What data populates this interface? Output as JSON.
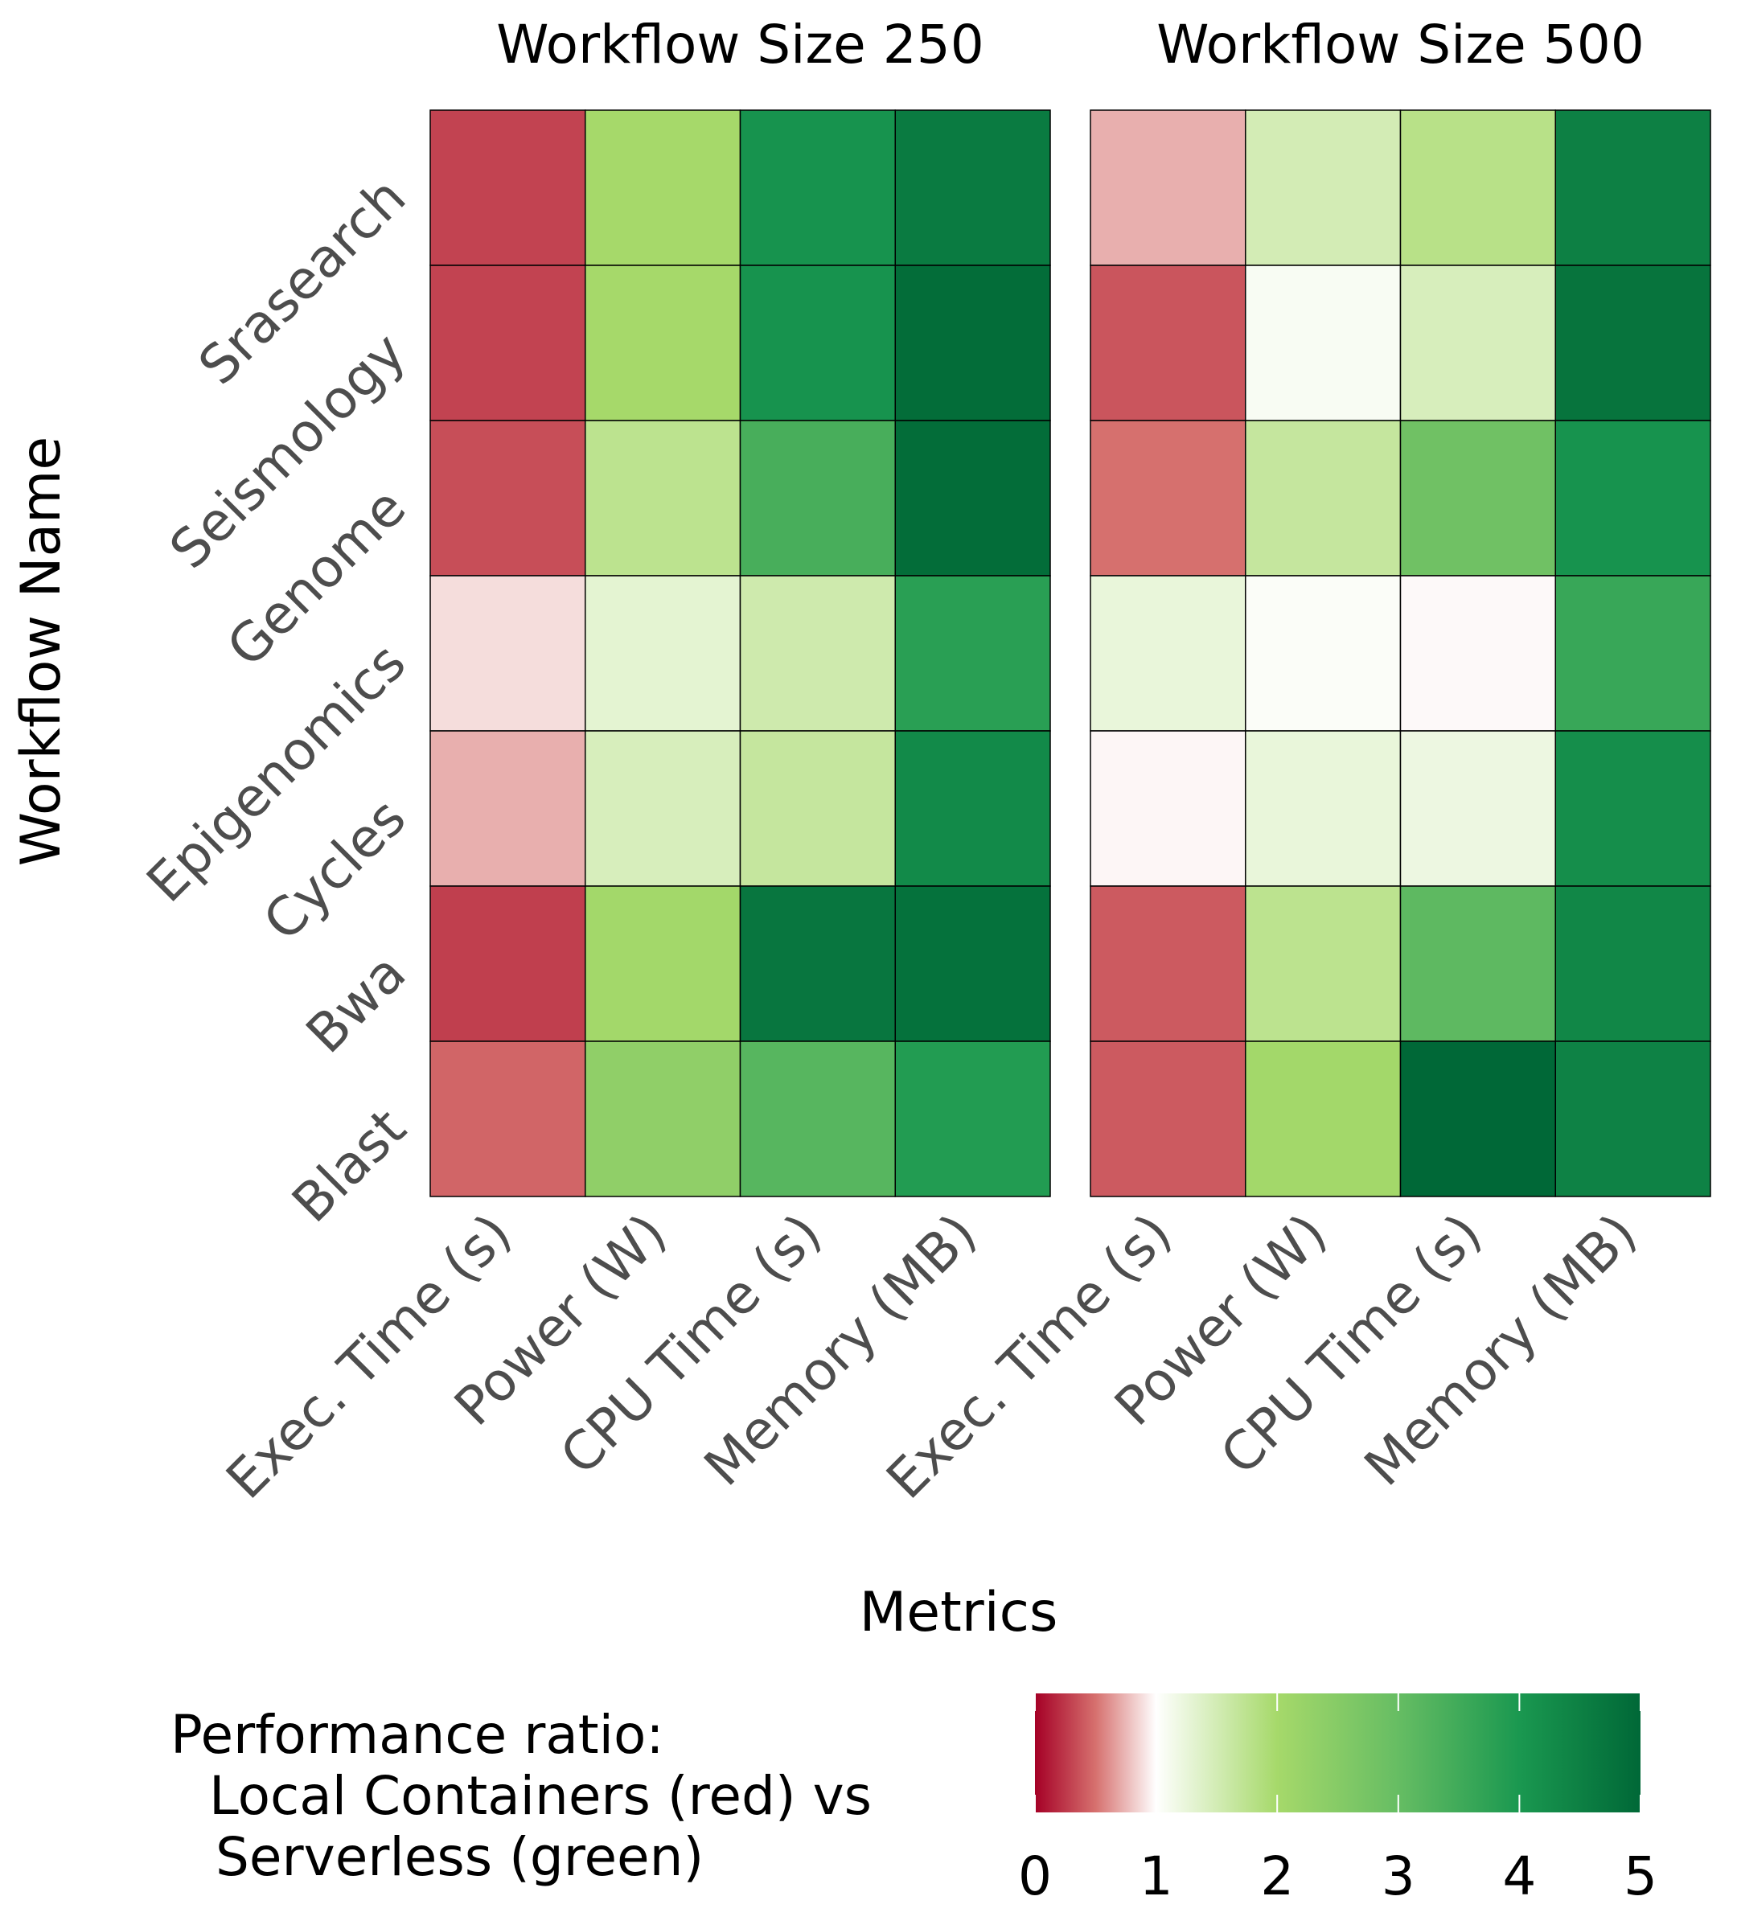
{
  "chart_data": {
    "type": "heatmap",
    "xlabel": "Metrics",
    "ylabel": "Workflow Name",
    "metrics": [
      "Exec. Time (s)",
      "Power (W)",
      "CPU Time (s)",
      "Memory (MB)"
    ],
    "workflows": [
      "Srasearch",
      "Seismology",
      "Genome",
      "Epigenomics",
      "Cycles",
      "Bwa",
      "Blast"
    ],
    "facets": [
      {
        "title": "Workflow Size 250",
        "values": [
          [
            0.3,
            2.0,
            4.1,
            4.6
          ],
          [
            0.3,
            2.0,
            4.1,
            4.9
          ],
          [
            0.35,
            1.75,
            3.4,
            4.9
          ],
          [
            0.88,
            1.3,
            1.55,
            3.8
          ],
          [
            0.72,
            1.45,
            1.65,
            4.3
          ],
          [
            0.28,
            2.05,
            4.7,
            4.8
          ],
          [
            0.45,
            2.35,
            3.2,
            3.9
          ]
        ]
      },
      {
        "title": "Workflow Size 500",
        "values": [
          [
            0.72,
            1.5,
            1.8,
            4.5
          ],
          [
            0.38,
            1.08,
            1.45,
            4.75
          ],
          [
            0.5,
            1.65,
            2.85,
            4.1
          ],
          [
            1.25,
            1.05,
            0.98,
            3.6
          ],
          [
            0.97,
            1.25,
            1.2,
            4.2
          ],
          [
            0.4,
            1.75,
            3.1,
            4.35
          ],
          [
            0.4,
            2.05,
            5.0,
            4.45
          ]
        ]
      }
    ],
    "colorbar": {
      "title_lines": [
        "Performance ratio:",
        "Local Containers (red) vs",
        "Serverless (green)"
      ],
      "range": [
        0,
        5
      ],
      "ticks": [
        "0",
        "1",
        "2",
        "3",
        "4",
        "5"
      ],
      "palette": [
        {
          "v": 0,
          "c": "#a50026"
        },
        {
          "v": 0.5,
          "c": "#d6706e"
        },
        {
          "v": 1,
          "c": "#ffffff"
        },
        {
          "v": 2,
          "c": "#a6d96a"
        },
        {
          "v": 3,
          "c": "#66bd63"
        },
        {
          "v": 4,
          "c": "#1a9850"
        },
        {
          "v": 5,
          "c": "#006837"
        }
      ]
    }
  }
}
